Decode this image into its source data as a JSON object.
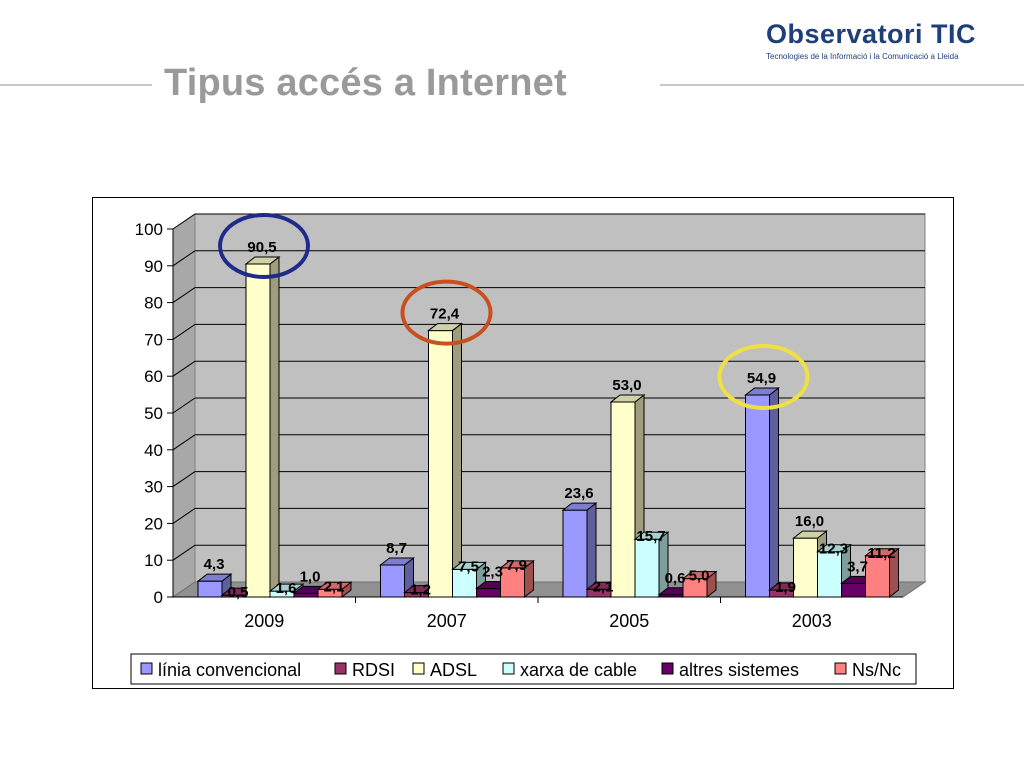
{
  "slide": {
    "title": "Tipus accés a Internet"
  },
  "logo": {
    "name": "Observatori TIC",
    "subtitle": "Tecnologies de la Informació i la Comunicació a Lleida"
  },
  "chart_data": {
    "type": "bar",
    "categories": [
      "2009",
      "2007",
      "2005",
      "2003"
    ],
    "series": [
      {
        "name": "línia convencional",
        "values": [
          4.3,
          8.7,
          23.6,
          54.9
        ],
        "labels": [
          "4,3",
          "8,7",
          "23,6",
          "54,9"
        ],
        "color": "#9999ff"
      },
      {
        "name": "RDSI",
        "values": [
          0.5,
          1.2,
          2.1,
          1.9
        ],
        "labels": [
          "0,5",
          "1,2",
          "2,1",
          "1,9"
        ],
        "color": "#993366"
      },
      {
        "name": "ADSL",
        "values": [
          90.5,
          72.4,
          53.0,
          16.0
        ],
        "labels": [
          "90,5",
          "72,4",
          "53,0",
          "16,0"
        ],
        "color": "#ffffcc"
      },
      {
        "name": "xarxa de cable",
        "values": [
          1.6,
          7.5,
          15.7,
          12.3
        ],
        "labels": [
          "1,6",
          "7,5",
          "15,7",
          "12,3"
        ],
        "color": "#ccffff"
      },
      {
        "name": "altres sistemes",
        "values": [
          1.0,
          2.3,
          0.6,
          3.7
        ],
        "labels": [
          "1,0",
          "2,3",
          "0,6",
          "3,7"
        ],
        "color": "#660066"
      },
      {
        "name": "Ns/Nc",
        "values": [
          2.1,
          7.9,
          5.0,
          11.2
        ],
        "labels": [
          "2,1",
          "7,9",
          "5,0",
          "11,2"
        ],
        "color": "#ff8080"
      }
    ],
    "ylim": [
      0,
      100
    ],
    "yticks": [
      0,
      10,
      20,
      30,
      40,
      50,
      60,
      70,
      80,
      90,
      100
    ],
    "grid": true,
    "legend": "bottom",
    "wall_color": "#c0c0c0",
    "highlights": [
      {
        "category": "2009",
        "series": "ADSL",
        "color": "#1f2a8a"
      },
      {
        "category": "2007",
        "series": "ADSL",
        "color": "#c8501e"
      },
      {
        "category": "2003",
        "series": "línia convencional",
        "color": "#f0e040"
      }
    ]
  }
}
